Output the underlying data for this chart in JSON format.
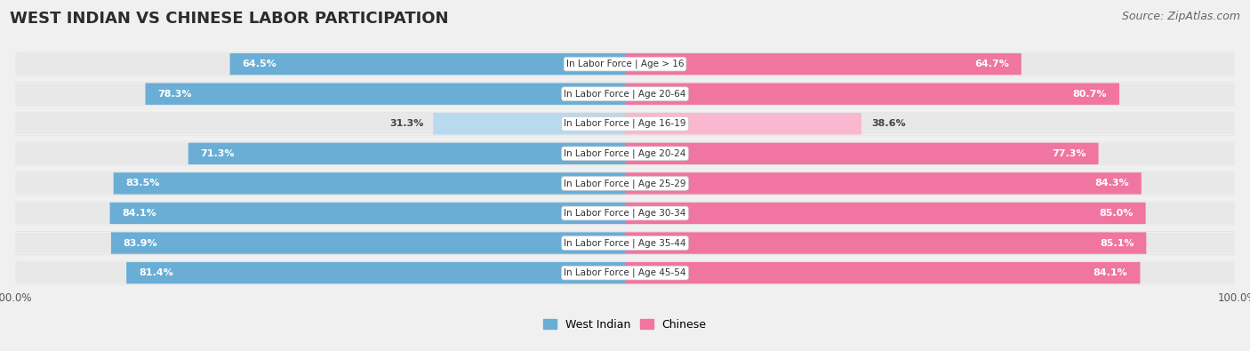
{
  "title": "WEST INDIAN VS CHINESE LABOR PARTICIPATION",
  "source": "Source: ZipAtlas.com",
  "categories": [
    "In Labor Force | Age > 16",
    "In Labor Force | Age 20-64",
    "In Labor Force | Age 16-19",
    "In Labor Force | Age 20-24",
    "In Labor Force | Age 25-29",
    "In Labor Force | Age 30-34",
    "In Labor Force | Age 35-44",
    "In Labor Force | Age 45-54"
  ],
  "west_indian": [
    64.5,
    78.3,
    31.3,
    71.3,
    83.5,
    84.1,
    83.9,
    81.4
  ],
  "chinese": [
    64.7,
    80.7,
    38.6,
    77.3,
    84.3,
    85.0,
    85.1,
    84.1
  ],
  "west_indian_color": "#6aaed6",
  "chinese_color": "#f075a0",
  "west_indian_light": "#b8d9ee",
  "chinese_light": "#f9b8cf",
  "row_bg_color": "#e8e8e8",
  "fig_bg_color": "#f0f0f0",
  "max_val": 100.0,
  "legend_west_indian": "West Indian",
  "legend_chinese": "Chinese",
  "title_fontsize": 13,
  "source_fontsize": 9,
  "value_fontsize": 8,
  "cat_fontsize": 7.5
}
